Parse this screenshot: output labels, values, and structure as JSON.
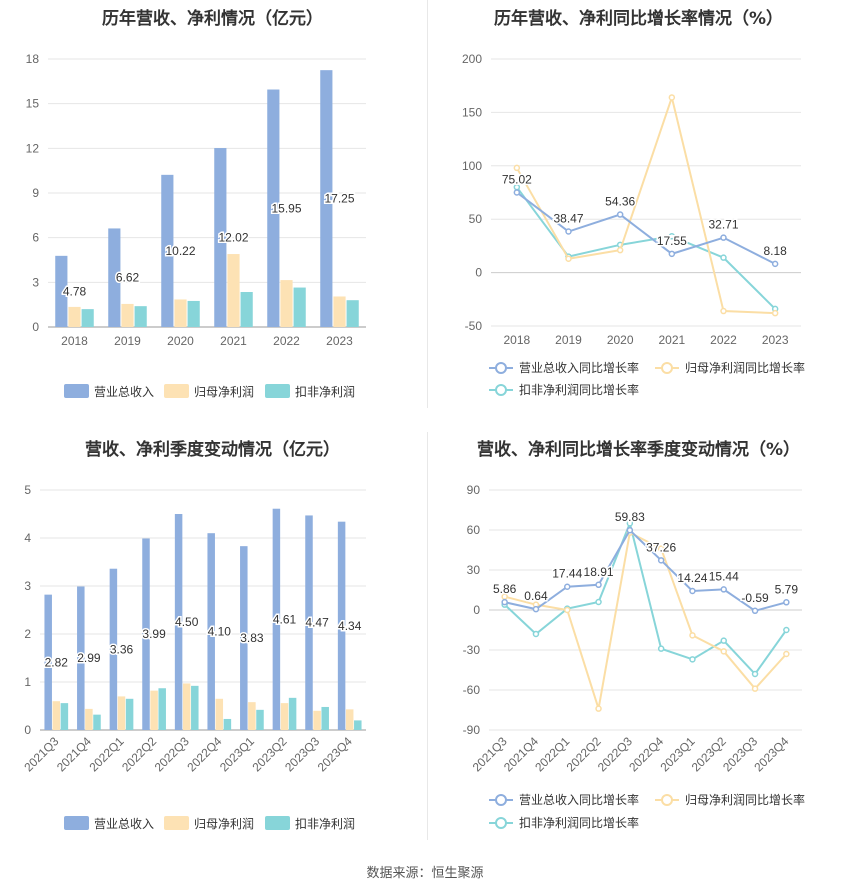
{
  "source_label": "数据来源：恒生聚源",
  "colors": {
    "revenue": "#8eaede",
    "parent_profit": "#fde2b4",
    "nonrecurring_profit": "#87d5d9",
    "revenue_line": "#8eaede",
    "parent_line": "#fbdea5",
    "nonrecurring_line": "#87d5d9"
  },
  "chart_data": [
    {
      "id": "annual_amount",
      "type": "bar",
      "title": "历年营收、净利情况（亿元）",
      "categories": [
        "2018",
        "2019",
        "2020",
        "2021",
        "2022",
        "2023"
      ],
      "ylim": [
        0,
        18
      ],
      "yticks": [
        "0",
        "3",
        "6",
        "9",
        "12",
        "15",
        "18"
      ],
      "grid": true,
      "legend_position": "bottom",
      "series": [
        {
          "name": "营业总收入",
          "values": [
            4.78,
            6.62,
            10.22,
            12.02,
            15.95,
            17.25
          ],
          "labels": [
            "4.78",
            "6.62",
            "10.22",
            "12.02",
            "15.95",
            "17.25"
          ]
        },
        {
          "name": "归母净利润",
          "values": [
            1.35,
            1.55,
            1.85,
            4.9,
            3.15,
            2.05
          ]
        },
        {
          "name": "扣非净利润",
          "values": [
            1.2,
            1.4,
            1.75,
            2.35,
            2.65,
            1.8
          ]
        }
      ]
    },
    {
      "id": "annual_growth",
      "type": "line",
      "title": "历年营收、净利同比增长率情况（%）",
      "categories": [
        "2018",
        "2019",
        "2020",
        "2021",
        "2022",
        "2023"
      ],
      "ylim": [
        -50,
        200
      ],
      "yticks": [
        "-50",
        "0",
        "50",
        "100",
        "150",
        "200"
      ],
      "grid": true,
      "legend_position": "bottom",
      "series": [
        {
          "name": "营业总收入同比增长率",
          "values": [
            75.02,
            38.47,
            54.36,
            17.55,
            32.71,
            8.18
          ],
          "labels": [
            "75.02",
            "38.47",
            "54.36",
            "17.55",
            "32.71",
            "8.18"
          ]
        },
        {
          "name": "归母净利润同比增长率",
          "values": [
            98,
            13,
            21,
            164,
            -36,
            -38
          ]
        },
        {
          "name": "扣非净利润同比增长率",
          "values": [
            80,
            15,
            26,
            34,
            14,
            -34
          ]
        }
      ]
    },
    {
      "id": "quarterly_amount",
      "type": "bar",
      "title": "营收、净利季度变动情况（亿元）",
      "categories": [
        "2021Q3",
        "2021Q4",
        "2022Q1",
        "2022Q2",
        "2022Q3",
        "2022Q4",
        "2023Q1",
        "2023Q2",
        "2023Q3",
        "2023Q4"
      ],
      "ylim": [
        0,
        5
      ],
      "yticks": [
        "0",
        "1",
        "2",
        "3",
        "4",
        "5"
      ],
      "grid": true,
      "legend_position": "bottom",
      "series": [
        {
          "name": "营业总收入",
          "values": [
            2.82,
            2.99,
            3.36,
            3.99,
            4.5,
            4.1,
            3.83,
            4.61,
            4.47,
            4.34
          ],
          "labels": [
            "2.82",
            "2.99",
            "3.36",
            "3.99",
            "4.50",
            "4.10",
            "3.83",
            "4.61",
            "4.47",
            "4.34"
          ]
        },
        {
          "name": "归母净利润",
          "values": [
            0.6,
            0.44,
            0.7,
            0.82,
            0.97,
            0.65,
            0.58,
            0.56,
            0.4,
            0.43
          ]
        },
        {
          "name": "扣非净利润",
          "values": [
            0.56,
            0.32,
            0.65,
            0.87,
            0.92,
            0.23,
            0.42,
            0.67,
            0.48,
            0.2
          ]
        }
      ]
    },
    {
      "id": "quarterly_growth",
      "type": "line",
      "title": "营收、净利同比增长率季度变动情况（%）",
      "categories": [
        "2021Q3",
        "2021Q4",
        "2022Q1",
        "2022Q2",
        "2022Q3",
        "2022Q4",
        "2023Q1",
        "2023Q2",
        "2023Q3",
        "2023Q4"
      ],
      "ylim": [
        -90,
        90
      ],
      "yticks": [
        "-90",
        "-60",
        "-30",
        "0",
        "30",
        "60",
        "90"
      ],
      "grid": true,
      "legend_position": "bottom",
      "series": [
        {
          "name": "营业总收入同比增长率",
          "values": [
            5.86,
            0.64,
            17.44,
            18.91,
            59.83,
            37.26,
            14.24,
            15.44,
            -0.59,
            5.79
          ],
          "labels": [
            "5.86",
            "0.64",
            "17.44",
            "18.91",
            "59.83",
            "37.26",
            "14.24",
            "15.44",
            "-0.59",
            "5.79"
          ]
        },
        {
          "name": "归母净利润同比增长率",
          "values": [
            10,
            4,
            0,
            -74,
            58,
            46,
            -19,
            -31,
            -59,
            -33
          ]
        },
        {
          "name": "扣非净利润同比增长率",
          "values": [
            4,
            -18,
            1,
            6,
            65,
            -29,
            -37,
            -23,
            -48,
            -15
          ]
        }
      ]
    }
  ]
}
